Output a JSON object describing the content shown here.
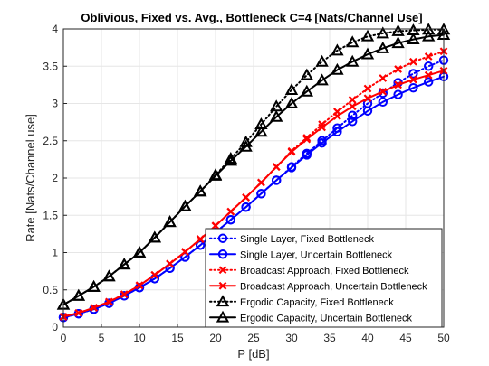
{
  "chart_data": {
    "type": "line",
    "title": "Oblivious, Fixed vs. Avg., Bottleneck C=4 [Nats/Channel Use]",
    "xlabel": "P [dB]",
    "ylabel": "Rate [Nats/Channel use]",
    "xlim": [
      0,
      50
    ],
    "ylim": [
      0,
      4
    ],
    "xticks": [
      "0",
      "5",
      "10",
      "15",
      "20",
      "25",
      "30",
      "35",
      "40",
      "45",
      "50"
    ],
    "yticks": [
      "0",
      "0.5",
      "1",
      "1.5",
      "2",
      "2.5",
      "3",
      "3.5",
      "4"
    ],
    "grid": true,
    "legend_position": "bottom-right",
    "x": [
      0,
      2,
      4,
      6,
      8,
      10,
      12,
      14,
      16,
      18,
      20,
      22,
      24,
      26,
      28,
      30,
      32,
      34,
      36,
      38,
      40,
      42,
      44,
      46,
      48,
      50
    ],
    "series": [
      {
        "name": "Single Layer, Fixed Bottleneck",
        "color": "#0000ff",
        "line": "dotted",
        "marker": "circle",
        "values": [
          0.13,
          0.18,
          0.24,
          0.32,
          0.42,
          0.53,
          0.65,
          0.79,
          0.94,
          1.1,
          1.27,
          1.44,
          1.61,
          1.79,
          1.97,
          2.15,
          2.33,
          2.5,
          2.67,
          2.84,
          3.0,
          3.14,
          3.28,
          3.4,
          3.5,
          3.58
        ]
      },
      {
        "name": "Single Layer, Uncertain Bottleneck",
        "color": "#0000ff",
        "line": "solid",
        "marker": "circle",
        "values": [
          0.13,
          0.18,
          0.24,
          0.32,
          0.42,
          0.53,
          0.65,
          0.79,
          0.94,
          1.1,
          1.27,
          1.44,
          1.61,
          1.79,
          1.97,
          2.14,
          2.31,
          2.47,
          2.62,
          2.76,
          2.9,
          3.02,
          3.12,
          3.21,
          3.29,
          3.36
        ]
      },
      {
        "name": "Broadcast Approach, Fixed Bottleneck",
        "color": "#ff0000",
        "line": "dotted",
        "marker": "x",
        "values": [
          0.14,
          0.19,
          0.26,
          0.34,
          0.44,
          0.56,
          0.7,
          0.85,
          1.01,
          1.18,
          1.36,
          1.55,
          1.74,
          1.94,
          2.15,
          2.36,
          2.54,
          2.72,
          2.89,
          3.05,
          3.2,
          3.34,
          3.46,
          3.56,
          3.63,
          3.7
        ]
      },
      {
        "name": "Broadcast Approach, Uncertain Bottleneck",
        "color": "#ff0000",
        "line": "solid",
        "marker": "x",
        "values": [
          0.14,
          0.19,
          0.26,
          0.34,
          0.44,
          0.56,
          0.7,
          0.85,
          1.01,
          1.18,
          1.36,
          1.55,
          1.74,
          1.94,
          2.15,
          2.35,
          2.52,
          2.68,
          2.83,
          2.96,
          3.07,
          3.16,
          3.25,
          3.32,
          3.38,
          3.44
        ]
      },
      {
        "name": "Ergodic Capacity, Fixed Bottleneck",
        "color": "#000000",
        "line": "dotted",
        "marker": "triangle",
        "values": [
          0.3,
          0.42,
          0.54,
          0.68,
          0.84,
          1.0,
          1.2,
          1.41,
          1.62,
          1.82,
          2.04,
          2.26,
          2.48,
          2.72,
          2.96,
          3.18,
          3.38,
          3.56,
          3.71,
          3.82,
          3.9,
          3.94,
          3.97,
          3.98,
          3.99,
          3.99
        ]
      },
      {
        "name": "Ergodic Capacity, Uncertain Bottleneck",
        "color": "#000000",
        "line": "solid",
        "marker": "triangle",
        "values": [
          0.3,
          0.42,
          0.54,
          0.68,
          0.84,
          1.0,
          1.2,
          1.41,
          1.62,
          1.82,
          2.03,
          2.23,
          2.42,
          2.62,
          2.82,
          3.0,
          3.16,
          3.31,
          3.45,
          3.56,
          3.66,
          3.74,
          3.81,
          3.86,
          3.9,
          3.92
        ]
      }
    ]
  }
}
